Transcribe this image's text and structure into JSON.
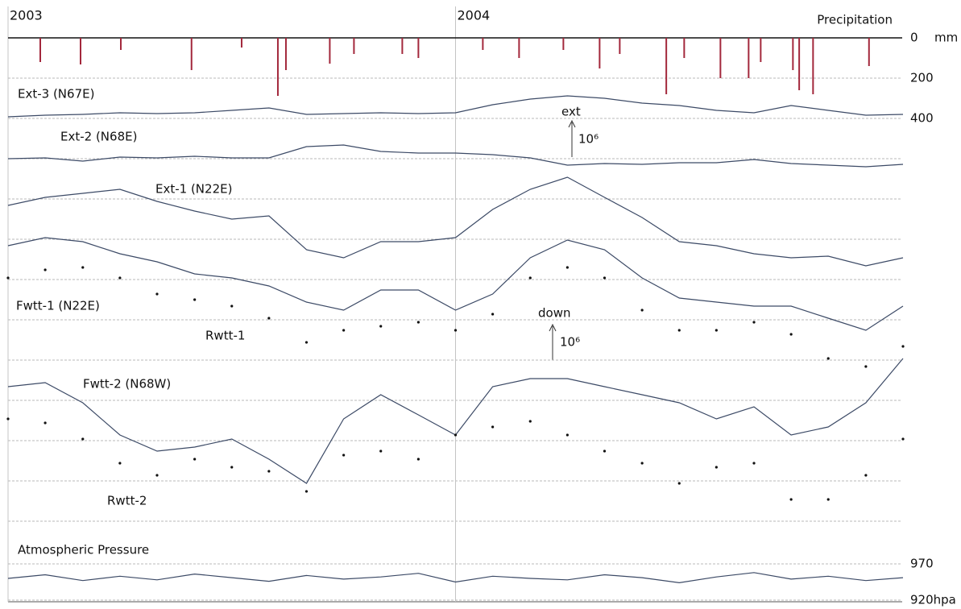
{
  "chart_data": [
    {
      "type": "bar",
      "title": "Precipitation",
      "y_unit": "mm",
      "color": "#a3283c",
      "y_inverted": true,
      "xlim": [
        2003,
        2005
      ],
      "xticks": [
        2003,
        2004
      ],
      "x": [
        2003.072,
        2003.162,
        2003.252,
        2003.41,
        2003.522,
        2003.603,
        2003.621,
        2003.719,
        2003.773,
        2003.881,
        2003.917,
        2004.061,
        2004.142,
        2004.241,
        2004.322,
        2004.367,
        2004.471,
        2004.511,
        2004.592,
        2004.655,
        2004.682,
        2004.754,
        2004.768,
        2004.799,
        2004.924
      ],
      "values": [
        120,
        132,
        60,
        160,
        48,
        288,
        160,
        128,
        80,
        80,
        100,
        60,
        100,
        60,
        152,
        80,
        280,
        100,
        200,
        200,
        120,
        160,
        260,
        280,
        140
      ],
      "ylim": [
        0,
        400
      ],
      "yticks": [
        0,
        200,
        400
      ]
    },
    {
      "type": "line",
      "xlim": [
        2003,
        2005
      ],
      "ylim": [
        0,
        12
      ],
      "x": [
        2003,
        2003.083,
        2003.167,
        2003.25,
        2003.333,
        2003.417,
        2003.5,
        2003.583,
        2003.667,
        2003.75,
        2003.833,
        2003.917,
        2004,
        2004.083,
        2004.167,
        2004.25,
        2004.333,
        2004.417,
        2004.5,
        2004.583,
        2004.667,
        2004.75,
        2004.833,
        2004.917,
        2005
      ],
      "series": [
        {
          "name": "Ext-3 (N67E)",
          "color": "#3c4a66",
          "marker": "line",
          "values": [
            11.04,
            11.08,
            11.1,
            11.14,
            11.12,
            11.14,
            11.2,
            11.26,
            11.1,
            11.12,
            11.14,
            11.12,
            11.14,
            11.34,
            11.48,
            11.56,
            11.5,
            11.38,
            11.32,
            11.2,
            11.14,
            11.32,
            11.2,
            11.08,
            11.1
          ]
        },
        {
          "name": "Ext-2 (N68E)",
          "color": "#3c4a66",
          "marker": "line",
          "values": [
            10.0,
            10.02,
            9.94,
            10.04,
            10.02,
            10.06,
            10.02,
            10.02,
            10.3,
            10.34,
            10.18,
            10.14,
            10.14,
            10.1,
            10.02,
            9.84,
            9.88,
            9.86,
            9.9,
            9.9,
            9.98,
            9.88,
            9.84,
            9.8,
            9.86
          ]
        },
        {
          "name": "Ext-1 (N22E)",
          "color": "#3c4a66",
          "marker": "line",
          "values": [
            8.84,
            9.04,
            9.14,
            9.24,
            8.94,
            8.7,
            8.5,
            8.58,
            7.74,
            7.54,
            7.94,
            7.94,
            8.04,
            8.74,
            9.24,
            9.54,
            9.04,
            8.54,
            7.94,
            7.84,
            7.64,
            7.54,
            7.58,
            7.34,
            7.54
          ]
        },
        {
          "name": "Fwtt-1 (N22E)",
          "color": "#3c4a66",
          "marker": "line",
          "values": [
            7.84,
            8.04,
            7.94,
            7.64,
            7.44,
            7.14,
            7.04,
            6.84,
            6.44,
            6.24,
            6.74,
            6.74,
            6.24,
            6.64,
            7.54,
            7.98,
            7.74,
            7.04,
            6.54,
            6.44,
            6.34,
            6.34,
            6.04,
            5.74,
            6.34
          ]
        },
        {
          "name": "Rwtt-1",
          "color": "#111111",
          "marker": "dots",
          "values": [
            7.04,
            7.24,
            7.3,
            7.04,
            6.64,
            6.5,
            6.34,
            6.04,
            5.44,
            5.74,
            5.84,
            5.94,
            5.74,
            6.14,
            7.04,
            7.3,
            7.04,
            6.24,
            5.74,
            5.74,
            5.94,
            5.64,
            5.04,
            4.84,
            5.34
          ]
        },
        {
          "name": "Fwtt-2 (N68W)",
          "color": "#3c4a66",
          "marker": "line",
          "values": [
            4.34,
            4.44,
            3.94,
            3.14,
            2.74,
            2.84,
            3.04,
            2.54,
            1.94,
            3.54,
            4.14,
            3.64,
            3.14,
            4.34,
            4.54,
            4.54,
            4.34,
            4.14,
            3.94,
            3.54,
            3.84,
            3.14,
            3.34,
            3.94,
            5.04
          ]
        },
        {
          "name": "Rwtt-2",
          "color": "#111111",
          "marker": "dots",
          "values": [
            3.54,
            3.44,
            3.04,
            2.44,
            2.14,
            2.54,
            2.34,
            2.24,
            1.74,
            2.64,
            2.74,
            2.54,
            3.14,
            3.34,
            3.48,
            3.14,
            2.74,
            2.44,
            1.94,
            2.34,
            2.44,
            1.54,
            1.54,
            2.14,
            3.04
          ]
        }
      ],
      "annotations": [
        "ext",
        "10⁶",
        "down",
        "10⁶"
      ]
    },
    {
      "type": "line",
      "title": "Atmospheric Pressure",
      "color": "#3c4a66",
      "xlim": [
        2003,
        2005
      ],
      "x": [
        2003,
        2003.083,
        2003.167,
        2003.25,
        2003.333,
        2003.417,
        2003.5,
        2003.583,
        2003.667,
        2003.75,
        2003.833,
        2003.917,
        2004,
        2004.083,
        2004.167,
        2004.25,
        2004.333,
        2004.417,
        2004.5,
        2004.583,
        2004.667,
        2004.75,
        2004.833,
        2004.917,
        2005
      ],
      "values": [
        950,
        955,
        947,
        953,
        948,
        956,
        951,
        946,
        954,
        949,
        952,
        957,
        945,
        953,
        950,
        948,
        955,
        951,
        944,
        952,
        958,
        949,
        953,
        947,
        951
      ],
      "ylim": [
        920,
        970
      ],
      "yticks": [
        970,
        {
          "value": 920,
          "label": "920hpa"
        }
      ]
    }
  ]
}
